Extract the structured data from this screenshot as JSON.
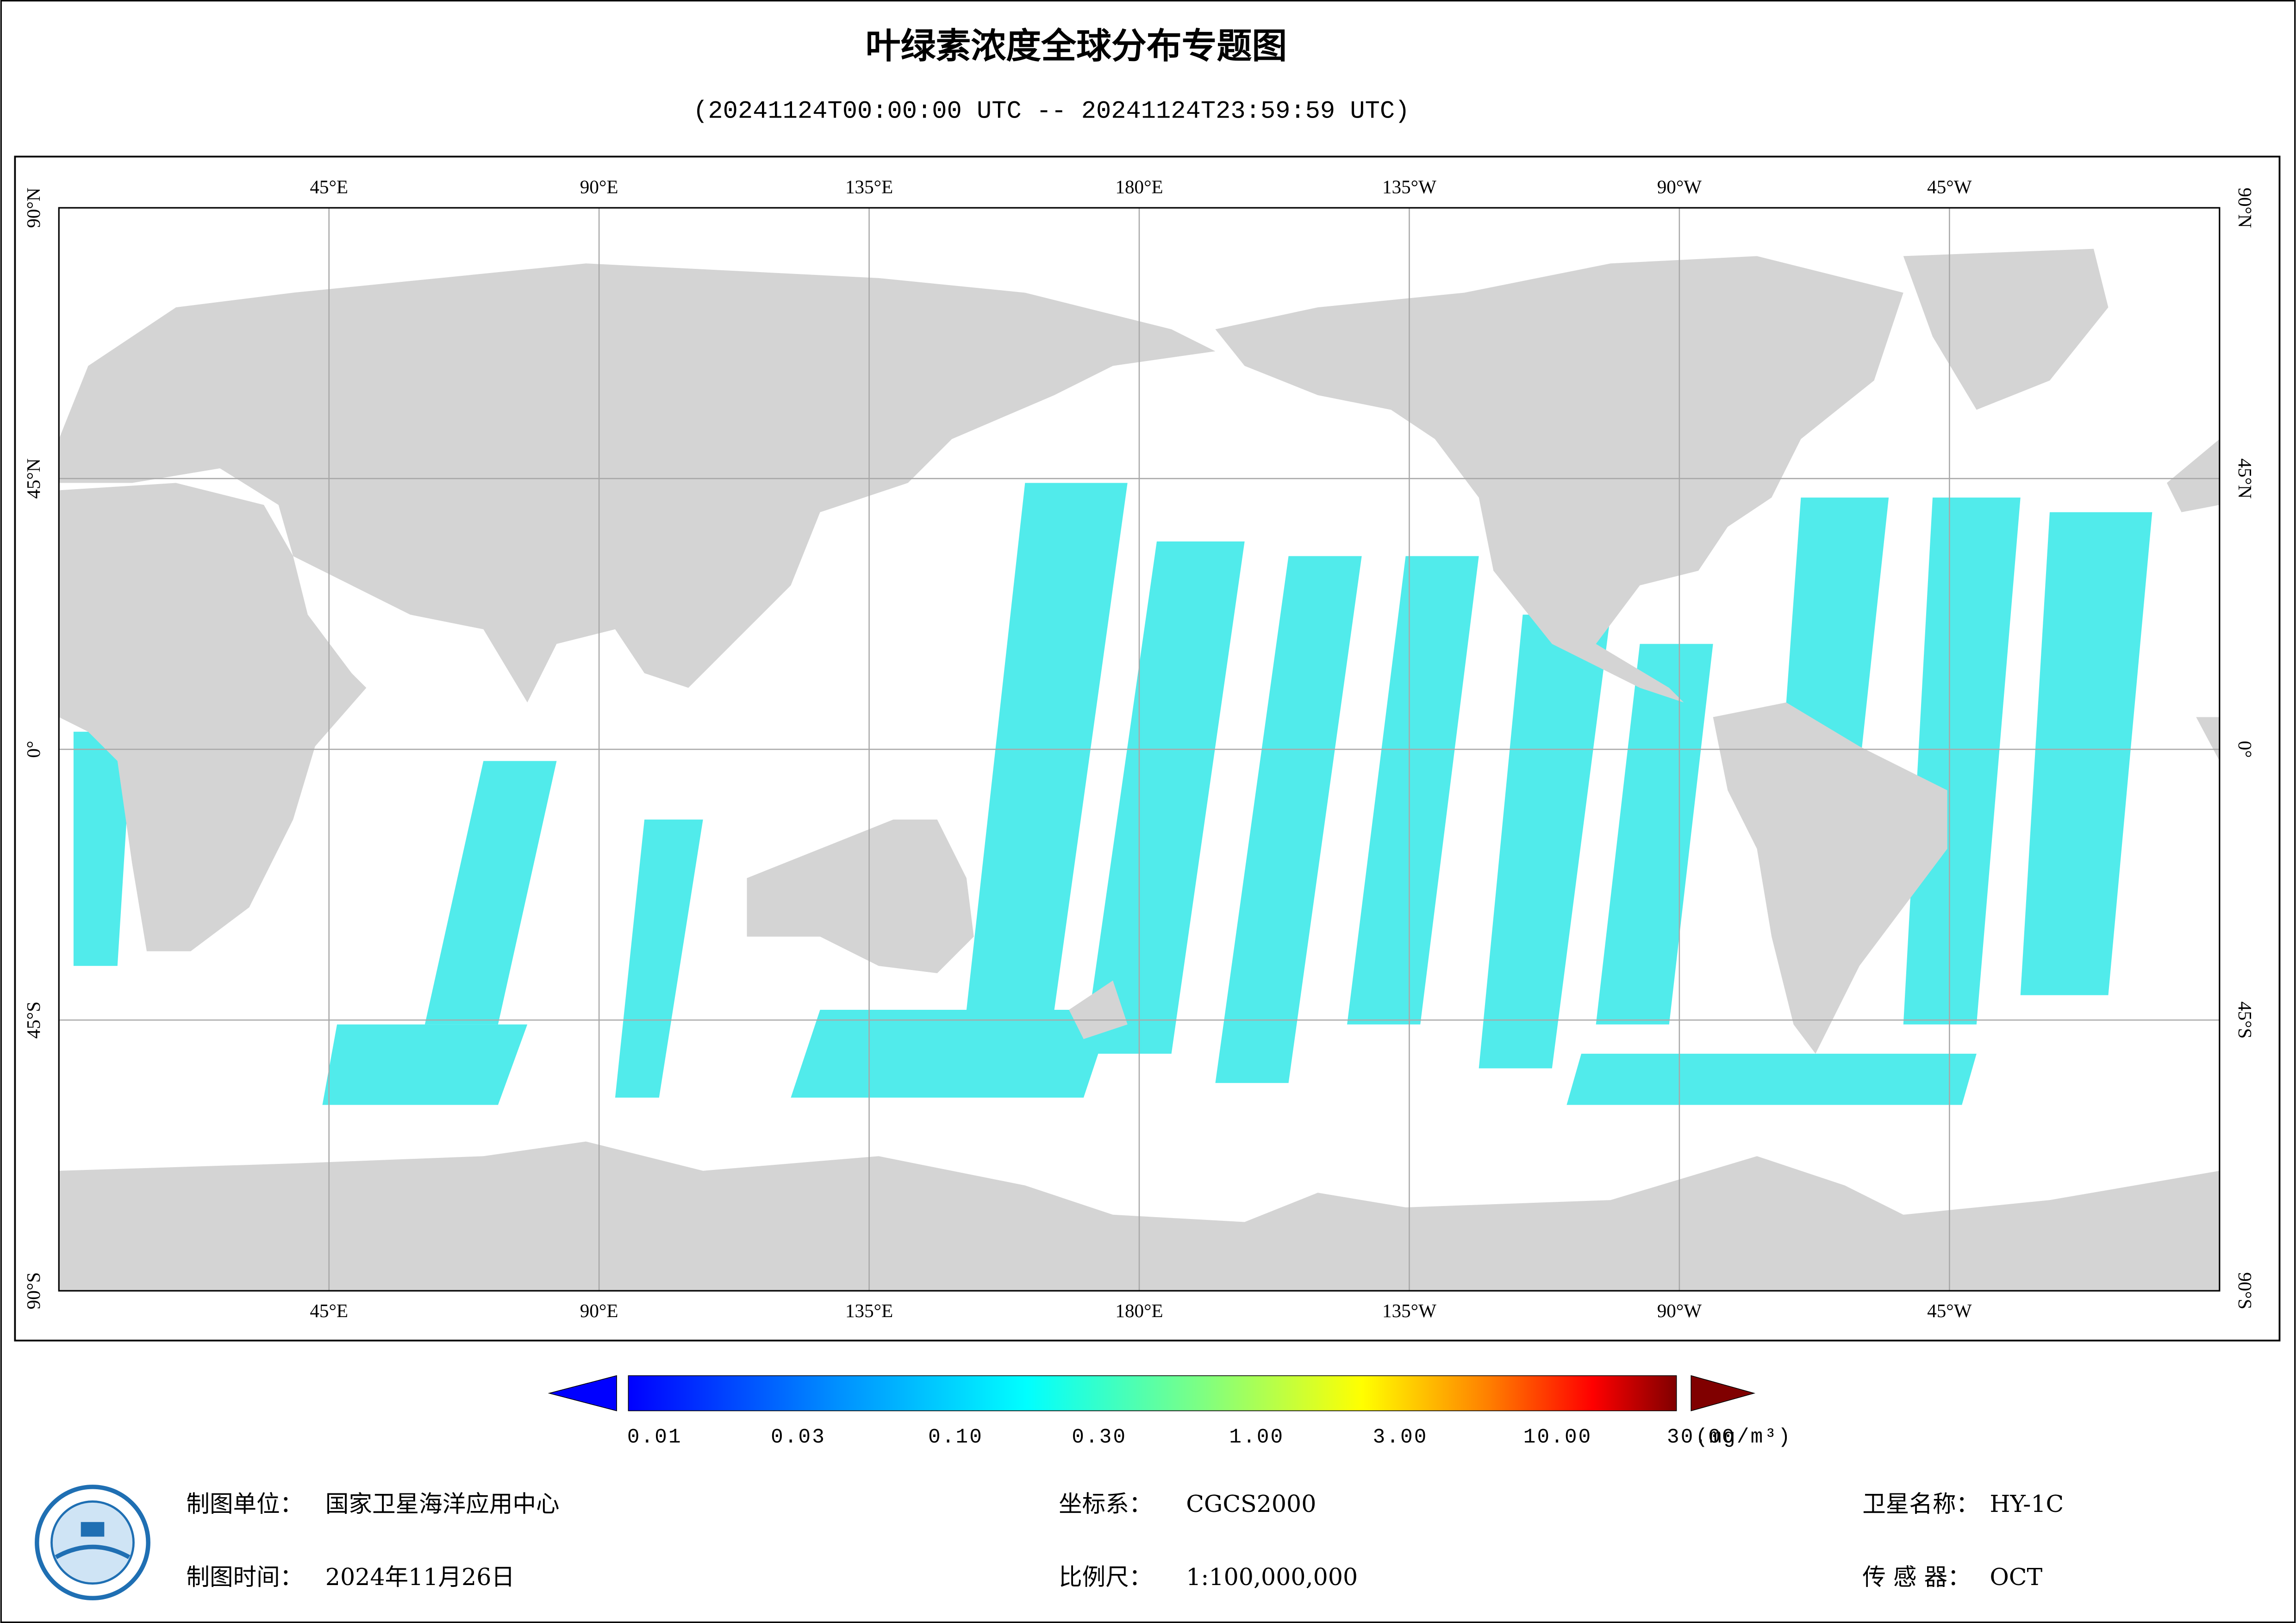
{
  "header": {
    "title": "叶绿素浓度全球分布专题图",
    "subtitle": "(20241124T00:00:00 UTC -- 20241124T23:59:59 UTC)"
  },
  "map": {
    "lonlim": [
      0,
      360
    ],
    "latlim": [
      -90,
      90
    ],
    "lonticks": [
      {
        "value": 45,
        "label": "45°E"
      },
      {
        "value": 90,
        "label": "90°E"
      },
      {
        "value": 135,
        "label": "135°E"
      },
      {
        "value": 180,
        "label": "180°E"
      },
      {
        "value": 225,
        "label": "135°W"
      },
      {
        "value": 270,
        "label": "90°W"
      },
      {
        "value": 315,
        "label": "45°W"
      }
    ],
    "latticks": [
      {
        "value": 90,
        "label": "90°N"
      },
      {
        "value": 45,
        "label": "45°N"
      },
      {
        "value": 0,
        "label": "0°"
      },
      {
        "value": -45,
        "label": "45°S"
      },
      {
        "value": -90,
        "label": "90°S"
      }
    ],
    "grid": true
  },
  "colorbar": {
    "scale": "log",
    "lim": [
      0.01,
      30
    ],
    "ticks": [
      0.01,
      0.03,
      {
        "value": 0.1,
        "label": "0.10"
      },
      {
        "value": 0.3,
        "label": "0.30"
      },
      {
        "value": 1,
        "label": "1.00"
      },
      {
        "value": 3,
        "label": "3.00"
      },
      {
        "value": 10,
        "label": "10.00"
      },
      {
        "value": 30,
        "label": "30.00"
      }
    ],
    "unit": "(mg/m³)"
  },
  "footer": {
    "items": [
      {
        "label": "制图单位：",
        "value": "国家卫星海洋应用中心"
      },
      {
        "label": "坐标系：",
        "value": "CGCS2000"
      },
      {
        "label": "卫星名称：",
        "value": "HY-1C"
      },
      {
        "label": "制图时间：",
        "value": "2024年11月26日"
      },
      {
        "label": "比例尺：",
        "value": "1:100,000,000"
      },
      {
        "label": "传 感 器：",
        "value": "OCT"
      }
    ]
  }
}
